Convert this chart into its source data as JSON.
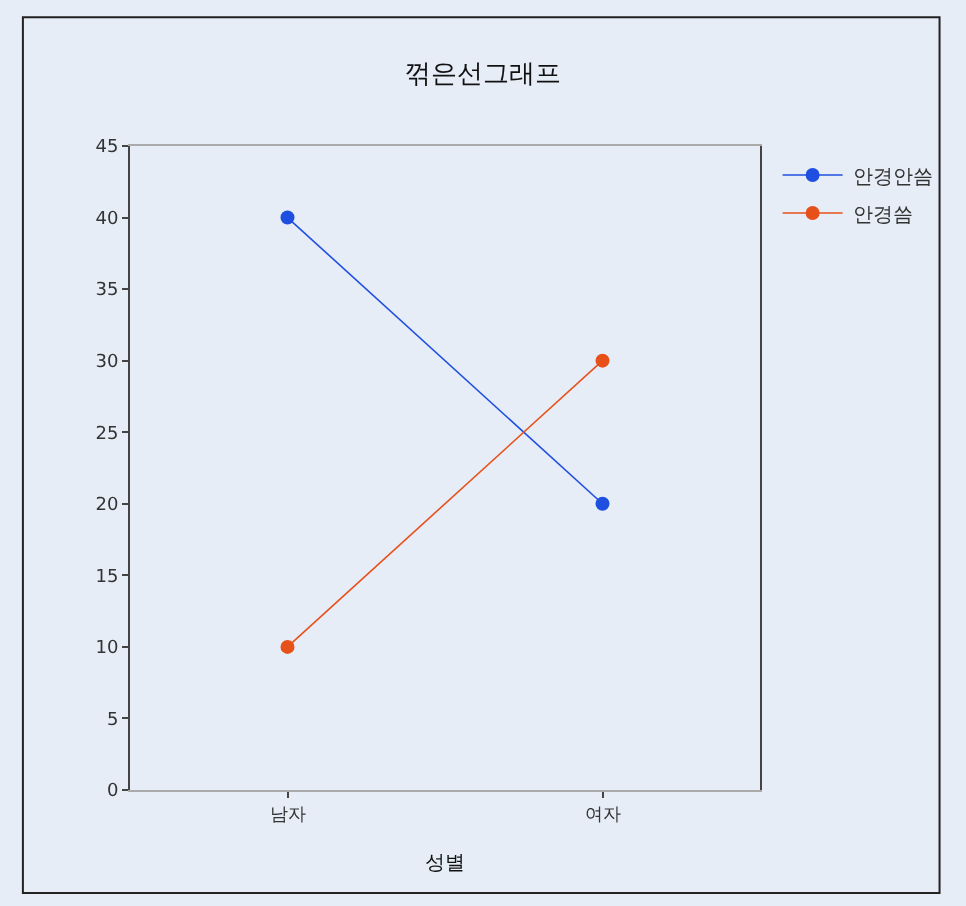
{
  "chart_data": {
    "type": "line",
    "title": "꺾은선그래프",
    "xlabel": "성별",
    "categories": [
      "남자",
      "여자"
    ],
    "series": [
      {
        "name": "안경안씀",
        "color": "#1f4fe0",
        "values": [
          40,
          20
        ]
      },
      {
        "name": "안경씀",
        "color": "#e8501a",
        "values": [
          10,
          30
        ]
      }
    ],
    "ylim": [
      0,
      45
    ],
    "yticks": [
      0,
      5,
      10,
      15,
      20,
      25,
      30,
      35,
      40,
      45
    ],
    "grid": false,
    "legend": "top right",
    "marker": "circle",
    "line_style": "solid"
  }
}
